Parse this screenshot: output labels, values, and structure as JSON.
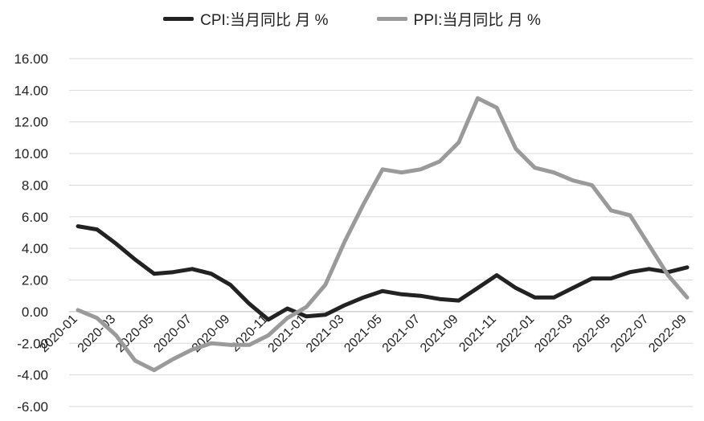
{
  "chart_data": {
    "type": "line",
    "title": "",
    "xlabel": "",
    "ylabel": "",
    "ylim": [
      -6,
      16
    ],
    "yticks": [
      "16.00",
      "14.00",
      "12.00",
      "10.00",
      "8.00",
      "6.00",
      "4.00",
      "2.00",
      "0.00",
      "-2.00",
      "-4.00",
      "-6.00"
    ],
    "xtick_labels": [
      "2020-01",
      "2020-03",
      "2020-05",
      "2020-07",
      "2020-09",
      "2020-11",
      "2021-01",
      "2021-03",
      "2021-05",
      "2021-07",
      "2021-09",
      "2021-11",
      "2022-01",
      "2022-03",
      "2022-05",
      "2022-07",
      "2022-09"
    ],
    "x": [
      "2020-01",
      "2020-02",
      "2020-03",
      "2020-04",
      "2020-05",
      "2020-06",
      "2020-07",
      "2020-08",
      "2020-09",
      "2020-10",
      "2020-11",
      "2020-12",
      "2021-01",
      "2021-02",
      "2021-03",
      "2021-04",
      "2021-05",
      "2021-06",
      "2021-07",
      "2021-08",
      "2021-09",
      "2021-10",
      "2021-11",
      "2021-12",
      "2022-01",
      "2022-02",
      "2022-03",
      "2022-04",
      "2022-05",
      "2022-06",
      "2022-07",
      "2022-08",
      "2022-09"
    ],
    "grid": true,
    "legend_position": "top-center",
    "series": [
      {
        "name": "CPI:当月同比 月 %",
        "color": "#222222",
        "values": [
          5.4,
          5.2,
          4.3,
          3.3,
          2.4,
          2.5,
          2.7,
          2.4,
          1.7,
          0.5,
          -0.5,
          0.2,
          -0.3,
          -0.2,
          0.4,
          0.9,
          1.3,
          1.1,
          1.0,
          0.8,
          0.7,
          1.5,
          2.3,
          1.5,
          0.9,
          0.9,
          1.5,
          2.1,
          2.1,
          2.5,
          2.7,
          2.5,
          2.8
        ]
      },
      {
        "name": "PPI:当月同比 月 %",
        "color": "#9a9a9a",
        "values": [
          0.1,
          -0.4,
          -1.5,
          -3.1,
          -3.7,
          -3.0,
          -2.4,
          -2.0,
          -2.1,
          -2.1,
          -1.5,
          -0.4,
          0.3,
          1.7,
          4.4,
          6.8,
          9.0,
          8.8,
          9.0,
          9.5,
          10.7,
          13.5,
          12.9,
          10.3,
          9.1,
          8.8,
          8.3,
          8.0,
          6.4,
          6.1,
          4.2,
          2.3,
          0.9
        ]
      }
    ]
  }
}
